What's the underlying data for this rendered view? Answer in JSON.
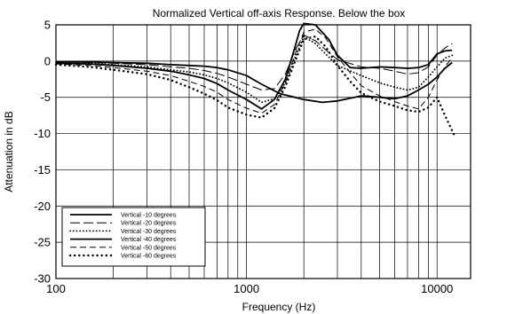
{
  "chart_data": {
    "type": "line",
    "title": "Normalized Vertical off-axis Response. Below the box",
    "xlabel": "Frequency (Hz)",
    "ylabel": "Attenuation in dB",
    "xscale": "log",
    "xlim": [
      100,
      15000
    ],
    "ylim": [
      -30,
      5
    ],
    "grid": true,
    "legend_position": "bottom-left",
    "x_ticks": [
      {
        "value": 100,
        "label": "100"
      },
      {
        "value": 1000,
        "label": "1000"
      },
      {
        "value": 10000,
        "label": "10000"
      }
    ],
    "y_ticks": [
      {
        "value": 5,
        "label": "5"
      },
      {
        "value": 0,
        "label": "0"
      },
      {
        "value": -5,
        "label": "-5"
      },
      {
        "value": -10,
        "label": "-10"
      },
      {
        "value": -15,
        "label": "-15"
      },
      {
        "value": -20,
        "label": "-20"
      },
      {
        "value": -25,
        "label": "-25"
      },
      {
        "value": -30,
        "label": "-30"
      }
    ],
    "series": [
      {
        "name": "Vertical -10 degrees",
        "style": "solid-thick",
        "x": [
          100,
          150,
          200,
          300,
          400,
          500,
          600,
          700,
          800,
          1000,
          1200,
          1500,
          1800,
          2000,
          2500,
          3000,
          4000,
          5000,
          6000,
          7000,
          8000,
          9000,
          10000,
          11000,
          12000
        ],
        "y": [
          -0.1,
          -0.1,
          -0.2,
          -0.3,
          -0.5,
          -0.6,
          -0.7,
          -0.9,
          -1.2,
          -2.0,
          -3.2,
          -4.5,
          -5.0,
          -5.3,
          -5.7,
          -5.5,
          -4.8,
          -5.0,
          -5.2,
          -4.8,
          -4.0,
          -3.2,
          -2.2,
          -1.0,
          -0.2
        ]
      },
      {
        "name": "Vertical -20 degrees",
        "style": "long-dash",
        "x": [
          100,
          150,
          200,
          300,
          400,
          500,
          600,
          700,
          800,
          1000,
          1200,
          1400,
          1600,
          1800,
          2000,
          2300,
          2700,
          3000,
          4000,
          5000,
          6000,
          7000,
          8000,
          9000,
          10000,
          11000,
          12000
        ],
        "y": [
          -0.1,
          -0.2,
          -0.3,
          -0.5,
          -0.8,
          -1.0,
          -1.3,
          -1.7,
          -2.2,
          -3.2,
          -4.0,
          -3.8,
          -1.8,
          1.5,
          3.6,
          2.8,
          1.2,
          0.2,
          -0.8,
          -1.0,
          -1.4,
          -1.8,
          -1.6,
          -0.8,
          0.8,
          1.8,
          2.4
        ]
      },
      {
        "name": "Vertical -30 degrees",
        "style": "dotted",
        "x": [
          100,
          150,
          200,
          300,
          400,
          500,
          600,
          700,
          800,
          1000,
          1200,
          1400,
          1600,
          1800,
          2000,
          2300,
          2600,
          3000,
          4000,
          5000,
          6000,
          7000,
          8000,
          9000,
          10000,
          11000,
          12000
        ],
        "y": [
          -0.2,
          -0.3,
          -0.5,
          -0.8,
          -1.2,
          -1.5,
          -1.9,
          -2.4,
          -3.0,
          -4.3,
          -5.7,
          -5.2,
          -3.0,
          0.5,
          3.4,
          2.4,
          1.0,
          -0.6,
          -2.0,
          -3.0,
          -3.6,
          -4.0,
          -3.6,
          -2.2,
          -0.8,
          0.4,
          0.8
        ]
      },
      {
        "name": "Vertical -40 degrees",
        "style": "solid-thick",
        "x": [
          100,
          150,
          200,
          300,
          400,
          500,
          600,
          700,
          800,
          1000,
          1200,
          1400,
          1600,
          1800,
          1900,
          2000,
          2300,
          2700,
          3000,
          3500,
          4000,
          5000,
          6000,
          7000,
          8000,
          9000,
          10000,
          11000,
          12000
        ],
        "y": [
          -0.3,
          -0.4,
          -0.6,
          -1.0,
          -1.4,
          -1.9,
          -2.4,
          -3.1,
          -4.0,
          -5.3,
          -6.6,
          -5.3,
          -2.5,
          2.0,
          4.2,
          5.2,
          5.0,
          3.0,
          0.8,
          -0.9,
          -1.0,
          -0.8,
          -0.9,
          -1.0,
          -0.9,
          -0.5,
          1.0,
          1.4,
          1.5
        ]
      },
      {
        "name": "Vertical -50 degrees",
        "style": "dash",
        "x": [
          100,
          150,
          200,
          300,
          400,
          500,
          600,
          700,
          800,
          1000,
          1200,
          1400,
          1600,
          1800,
          2000,
          2300,
          2600,
          3000,
          3500,
          4000,
          5000,
          6000,
          7000,
          8000,
          9000,
          10000,
          11000,
          12000
        ],
        "y": [
          -0.4,
          -0.6,
          -0.9,
          -1.4,
          -2.0,
          -2.8,
          -3.5,
          -4.3,
          -5.3,
          -6.5,
          -7.2,
          -6.0,
          -3.0,
          1.0,
          4.0,
          4.4,
          3.2,
          0.6,
          -1.6,
          -3.4,
          -4.8,
          -5.6,
          -6.2,
          -6.6,
          -5.0,
          -2.6,
          -0.8,
          0.5
        ]
      },
      {
        "name": "Vertical -60 degrees",
        "style": "dotted-thick",
        "x": [
          100,
          150,
          200,
          300,
          400,
          500,
          600,
          700,
          800,
          1000,
          1200,
          1400,
          1600,
          1800,
          2000,
          2300,
          2600,
          3000,
          3500,
          4000,
          5000,
          6000,
          7000,
          8000,
          9000,
          10000,
          11000,
          12500
        ],
        "y": [
          -0.5,
          -0.8,
          -1.2,
          -1.8,
          -2.6,
          -3.6,
          -4.5,
          -5.4,
          -6.4,
          -7.4,
          -7.8,
          -6.5,
          -3.5,
          0.0,
          3.0,
          3.4,
          2.0,
          -0.6,
          -2.8,
          -4.4,
          -5.6,
          -6.2,
          -6.8,
          -7.0,
          -6.4,
          -5.0,
          -7.5,
          -10.6
        ]
      }
    ]
  }
}
